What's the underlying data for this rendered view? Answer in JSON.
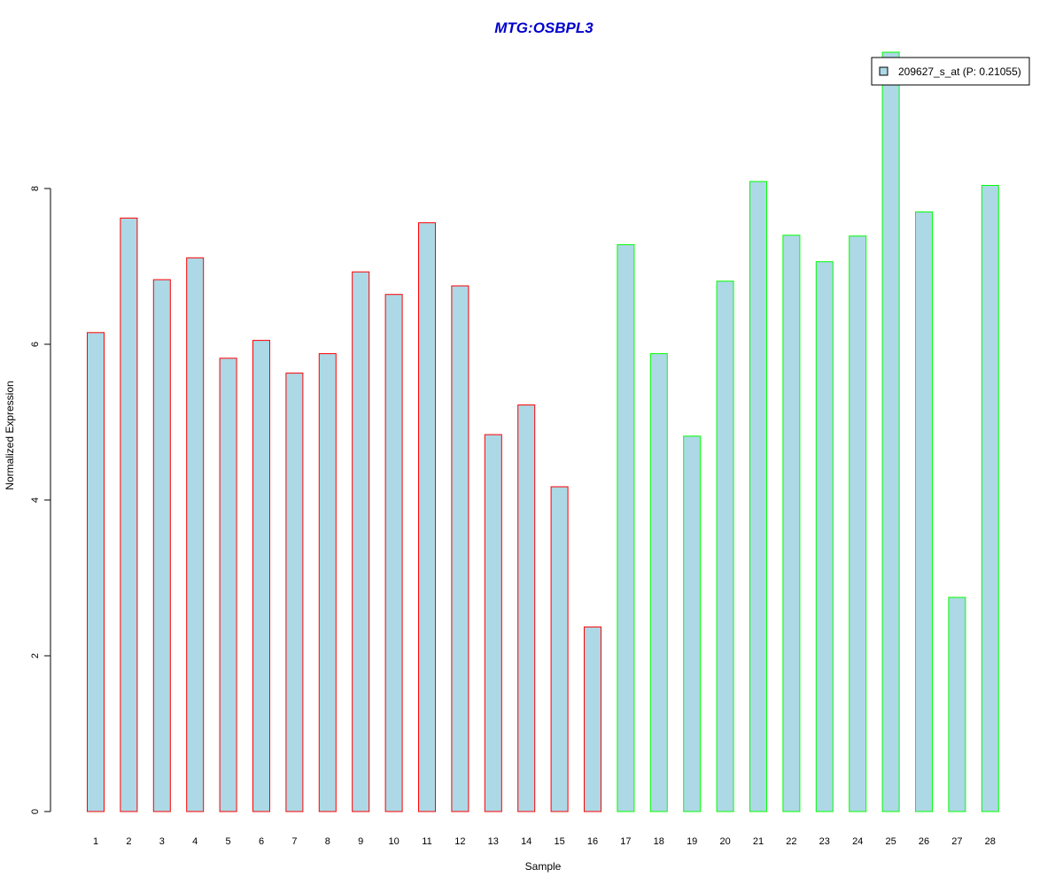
{
  "chart_data": {
    "type": "bar",
    "title": "MTG:OSBPL3",
    "xlabel": "Sample",
    "ylabel": "Normalized Expression",
    "categories": [
      "1",
      "2",
      "3",
      "4",
      "5",
      "6",
      "7",
      "8",
      "9",
      "10",
      "11",
      "12",
      "13",
      "14",
      "15",
      "16",
      "17",
      "18",
      "19",
      "20",
      "21",
      "22",
      "23",
      "24",
      "25",
      "26",
      "27",
      "28"
    ],
    "series": [
      {
        "name": "209627_s_at (P: 0.21055)",
        "fill": "#add8e6",
        "values": [
          6.15,
          7.62,
          6.83,
          7.11,
          5.82,
          6.05,
          5.63,
          5.88,
          6.93,
          6.64,
          7.56,
          6.75,
          4.84,
          5.22,
          4.17,
          2.37,
          7.28,
          5.88,
          4.82,
          6.81,
          8.09,
          7.4,
          7.06,
          7.39,
          9.75,
          7.7,
          2.75,
          8.04
        ]
      }
    ],
    "groups": [
      {
        "samples": "1-16",
        "border_color": "#ff0000"
      },
      {
        "samples": "17-28",
        "border_color": "#00ff00"
      }
    ],
    "bar_border_colors": [
      "#ff0000",
      "#ff0000",
      "#ff0000",
      "#ff0000",
      "#ff0000",
      "#ff0000",
      "#ff0000",
      "#ff0000",
      "#ff0000",
      "#ff0000",
      "#ff0000",
      "#ff0000",
      "#ff0000",
      "#ff0000",
      "#ff0000",
      "#ff0000",
      "#00ff00",
      "#00ff00",
      "#00ff00",
      "#00ff00",
      "#00ff00",
      "#00ff00",
      "#00ff00",
      "#00ff00",
      "#00ff00",
      "#00ff00",
      "#00ff00",
      "#00ff00"
    ],
    "yticks": [
      0,
      2,
      4,
      6,
      8
    ],
    "ylim": [
      0,
      10
    ],
    "grid": false,
    "legend_position": "top-right",
    "title_color": "#0000cd"
  }
}
